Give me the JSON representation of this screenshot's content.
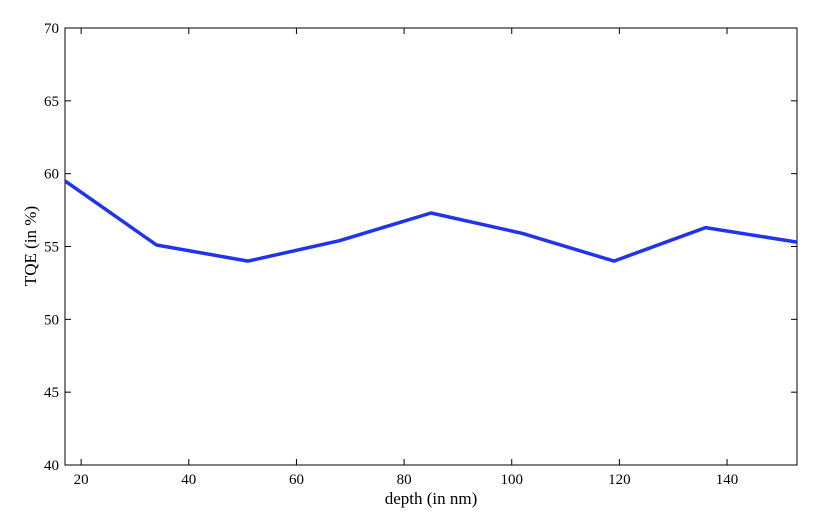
{
  "chart_data": {
    "type": "line",
    "xlabel": "depth (in nm)",
    "ylabel": "TQE (in %)",
    "xlim": [
      17,
      153
    ],
    "ylim": [
      40,
      70
    ],
    "x_ticks": [
      20,
      40,
      60,
      80,
      100,
      120,
      140
    ],
    "y_ticks": [
      40,
      45,
      50,
      55,
      60,
      65,
      70
    ],
    "x_tick_labels": [
      "20",
      "40",
      "60",
      "80",
      "100",
      "120",
      "140"
    ],
    "y_tick_labels": [
      "40",
      "45",
      "50",
      "55",
      "60",
      "65",
      "70"
    ],
    "grid": false,
    "series": [
      {
        "color": "#2233ee",
        "x": [
          17,
          34,
          51,
          68,
          85,
          102,
          119,
          136,
          153
        ],
        "y": [
          59.5,
          55.1,
          54.0,
          55.4,
          57.3,
          55.9,
          54.0,
          56.3,
          55.3
        ]
      }
    ]
  }
}
